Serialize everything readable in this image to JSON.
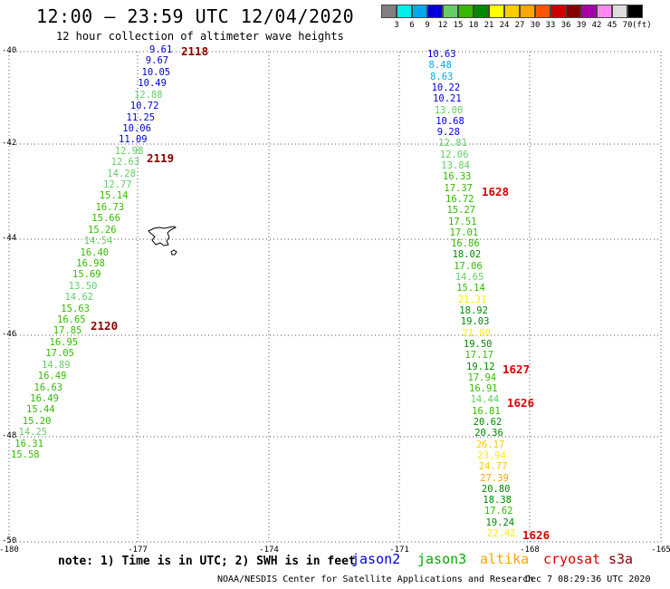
{
  "title": "12:00 – 23:59 UTC 12/04/2020",
  "subtitle": "12 hour collection of altimeter wave heights",
  "legend": {
    "swatches": [
      "#808080",
      "#00eeee",
      "#00aaee",
      "#0000dd",
      "#66cc66",
      "#33bb00",
      "#008800",
      "#ffff00",
      "#ffcc00",
      "#ffa500",
      "#ff5500",
      "#cc0000",
      "#880000",
      "#aa00aa",
      "#ff88ee",
      "#dddddd",
      "#000000"
    ],
    "labels": [
      "3",
      "6",
      "9",
      "12",
      "15",
      "18",
      "21",
      "24",
      "27",
      "30",
      "33",
      "36",
      "39",
      "42",
      "45",
      "70"
    ],
    "unit": "(ft)"
  },
  "axes": {
    "lat_labels": [
      "-40",
      "-42",
      "-44",
      "-46",
      "-48",
      "-50"
    ],
    "lon_labels": [
      "-180",
      "-177",
      "-174",
      "-171",
      "-168",
      "-165"
    ]
  },
  "colors": {
    "jason2": "#0000dd",
    "jason3": "#00aa00",
    "altika": "#ffa500",
    "cryosat": "#dd0000",
    "s3a": "#880000"
  },
  "left_track": {
    "values": [
      "9.61",
      "9.67",
      "10.05",
      "10.49",
      "12.88",
      "10.72",
      "11.25",
      "10.06",
      "11.09",
      "12.98",
      "12.63",
      "14.28",
      "12.77",
      "15.14",
      "16.73",
      "15.66",
      "15.26",
      "14.54",
      "16.40",
      "16.98",
      "15.69",
      "13.50",
      "14.62",
      "15.63",
      "16.65",
      "17.85",
      "16.95",
      "17.05",
      "14.89",
      "16.49",
      "16.63",
      "16.49",
      "15.44",
      "15.20",
      "14.25",
      "16.31",
      "15.58"
    ],
    "time_labels": [
      "2118",
      "2119",
      "2120"
    ]
  },
  "right_track": {
    "values": [
      "10.63",
      "8.48",
      "8.63",
      "10.22",
      "10.21",
      "13.00",
      "10.68",
      "9.28",
      "12.81",
      "12.06",
      "13.84",
      "16.33",
      "17.37",
      "16.72",
      "15.27",
      "17.51",
      "17.01",
      "16.86",
      "18.02",
      "17.06",
      "14.65",
      "15.14",
      "21.31",
      "18.92",
      "19.03",
      "21.80",
      "19.50",
      "17.17",
      "19.12",
      "17.94",
      "16.91",
      "14.44",
      "16.81",
      "20.62",
      "20.36",
      "26.17",
      "23.94",
      "24.77",
      "27.39",
      "20.80",
      "18.38",
      "17.62",
      "19.24",
      "22.42"
    ],
    "time_labels": [
      "1628",
      "1627",
      "1626",
      "1626"
    ]
  },
  "note": "note: 1) Time is in UTC; 2) SWH is in feet",
  "satellites": [
    "jason2",
    "jason3",
    "altika",
    "cryosat",
    "s3a"
  ],
  "credit": "NOAA/NESDIS Center for Satellite Applications and Research",
  "timestamp": "Dec  7 08:29:36 UTC 2020"
}
